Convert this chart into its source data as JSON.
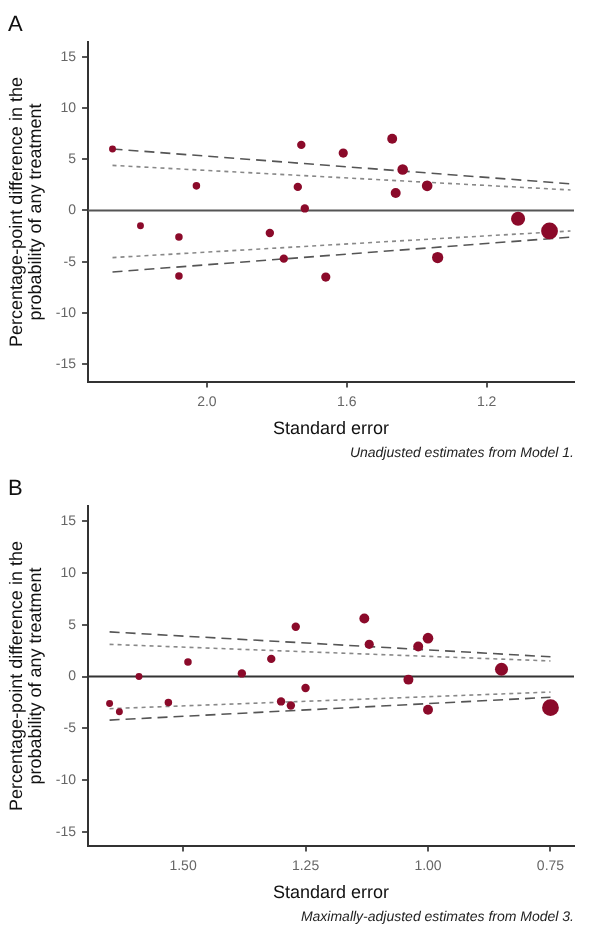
{
  "chart_data": [
    {
      "type": "bubble",
      "title": "A",
      "xlabel": "Standard error",
      "ylabel": "Percentage-point difference in the probability of any treatment",
      "annotations": [
        "Unadjusted estimates from Model 1."
      ],
      "relative": false,
      "xlim": [
        2.34,
        0.95
      ],
      "xticks": [
        {
          "value": 2,
          "label": "2.0"
        },
        {
          "value": 1.6,
          "label": "1.6"
        },
        {
          "value": 1.2,
          "label": "1.2"
        }
      ],
      "ylim": [
        -16.7,
        16.4
      ],
      "yticks": [
        -15,
        -10,
        -5,
        0,
        5,
        10,
        15
      ],
      "grid": false,
      "legend": false,
      "ref_lines": [
        {
          "axis": "y",
          "value": 0,
          "color": "#555555",
          "line_style": "solid"
        }
      ],
      "series": [
        {
          "type": "bubble",
          "color": "#8b0a2a",
          "x": [
            2.27,
            2.19,
            2.08,
            2.08,
            2.03,
            1.82,
            1.78,
            1.74,
            1.73,
            1.72,
            1.66,
            1.61,
            1.47,
            1.44,
            1.46,
            1.37,
            1.34,
            1.11,
            1.02
          ],
          "values": [
            6,
            -1.5,
            -2.6,
            -6.4,
            2.4,
            -2.2,
            -4.7,
            2.3,
            6.4,
            0.2,
            -6.5,
            5.6,
            7,
            4,
            1.7,
            2.4,
            -4.6,
            -0.8,
            -2
          ],
          "sizes": [
            0.17,
            0.17,
            0.2,
            0.2,
            0.2,
            0.25,
            0.25,
            0.25,
            0.25,
            0.25,
            0.3,
            0.3,
            0.35,
            0.4,
            0.35,
            0.4,
            0.45,
            0.7,
            1
          ]
        },
        {
          "type": "line",
          "color": "#555555",
          "line_style": "dashed",
          "marker": "none",
          "x": [
            2.27,
            0.96
          ],
          "values": [
            6,
            2.6
          ]
        },
        {
          "type": "line",
          "color": "#555555",
          "line_style": "dashed",
          "marker": "none",
          "x": [
            2.27,
            0.96
          ],
          "values": [
            -6,
            -2.6
          ]
        },
        {
          "type": "line",
          "color": "#888888",
          "line_style": "dotted",
          "marker": "none",
          "x": [
            2.27,
            0.96
          ],
          "values": [
            4.4,
            2
          ]
        },
        {
          "type": "line",
          "color": "#888888",
          "line_style": "dotted",
          "marker": "none",
          "x": [
            2.27,
            0.96
          ],
          "values": [
            -4.6,
            -2
          ]
        }
      ]
    },
    {
      "type": "bubble",
      "title": "B",
      "xlabel": "Standard error",
      "ylabel": "Percentage-point difference in the probability of any treatment",
      "annotations": [
        "Maximally-adjusted estimates from Model 3."
      ],
      "relative": false,
      "xlim": [
        1.694,
        0.702
      ],
      "xticks": [
        {
          "value": 1.5,
          "label": "1.50"
        },
        {
          "value": 1.25,
          "label": "1.25"
        },
        {
          "value": 1,
          "label": "1.00"
        },
        {
          "value": 0.75,
          "label": "0.75"
        }
      ],
      "ylim": [
        -16.3,
        16.4
      ],
      "yticks": [
        -15,
        -10,
        -5,
        0,
        5,
        10,
        15
      ],
      "grid": false,
      "legend": false,
      "ref_lines": [
        {
          "axis": "y",
          "value": 0,
          "color": "#333333",
          "line_style": "solid"
        }
      ],
      "series": [
        {
          "type": "bubble",
          "color": "#8b0a2a",
          "x": [
            1.65,
            1.63,
            1.59,
            1.53,
            1.49,
            1.38,
            1.32,
            1.3,
            1.28,
            1.27,
            1.25,
            1.13,
            1.12,
            1.04,
            1.02,
            1.0,
            1.0,
            0.85,
            0.75
          ],
          "values": [
            -2.6,
            -3.4,
            0,
            -2.5,
            1.4,
            0.3,
            1.7,
            -2.4,
            -2.8,
            4.8,
            -1.1,
            5.6,
            3.1,
            -0.3,
            2.9,
            3.7,
            -3.2,
            0.7,
            -3
          ],
          "sizes": [
            0.17,
            0.17,
            0.17,
            0.2,
            0.2,
            0.25,
            0.25,
            0.25,
            0.25,
            0.25,
            0.25,
            0.35,
            0.3,
            0.35,
            0.35,
            0.4,
            0.35,
            0.6,
            1
          ]
        },
        {
          "type": "line",
          "color": "#555555",
          "line_style": "dashed",
          "marker": "none",
          "x": [
            1.65,
            0.75
          ],
          "values": [
            4.3,
            1.9
          ]
        },
        {
          "type": "line",
          "color": "#555555",
          "line_style": "dashed",
          "marker": "none",
          "x": [
            1.65,
            0.75
          ],
          "values": [
            -4.2,
            -2
          ]
        },
        {
          "type": "line",
          "color": "#888888",
          "line_style": "dotted",
          "marker": "none",
          "x": [
            1.65,
            0.75
          ],
          "values": [
            3.1,
            1.5
          ]
        },
        {
          "type": "line",
          "color": "#888888",
          "line_style": "dotted",
          "marker": "none",
          "x": [
            1.65,
            0.75
          ],
          "values": [
            -3.1,
            -1.5
          ]
        }
      ]
    }
  ]
}
